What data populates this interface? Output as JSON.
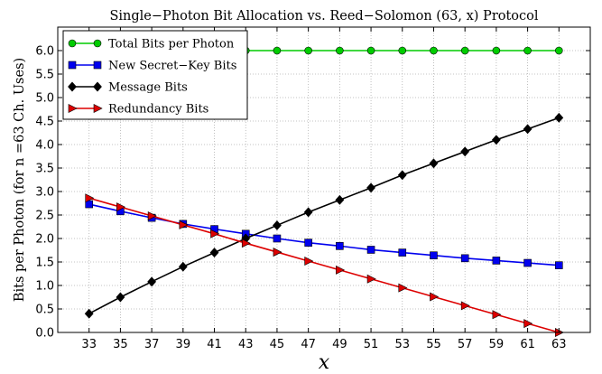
{
  "chart_data": {
    "type": "line",
    "title": "Single−Photon Bit Allocation vs. Reed−Solomon (63, x) Protocol",
    "xlabel": "x",
    "ylabel": "Bits per Photon (for n =63 Ch. Uses)",
    "xlim": [
      31,
      65
    ],
    "ylim": [
      0.0,
      6.5
    ],
    "x_ticks": [
      33,
      35,
      37,
      39,
      41,
      43,
      45,
      47,
      49,
      51,
      53,
      55,
      57,
      59,
      61,
      63
    ],
    "y_ticks": [
      "0.0",
      "0.5",
      "1.0",
      "1.5",
      "2.0",
      "2.5",
      "3.0",
      "3.5",
      "4.0",
      "4.5",
      "5.0",
      "5.5",
      "6.0"
    ],
    "grid": true,
    "legend_position": "top-left",
    "x": [
      33,
      35,
      37,
      39,
      41,
      43,
      45,
      47,
      49,
      51,
      53,
      55,
      57,
      59,
      61,
      63
    ],
    "series": [
      {
        "name": "Total Bits per Photon",
        "color": "#00cc00",
        "marker": "circle",
        "values": [
          6,
          6,
          6,
          6,
          6,
          6,
          6,
          6,
          6,
          6,
          6,
          6,
          6,
          6,
          6,
          6
        ]
      },
      {
        "name": "New Secret−Key Bits",
        "color": "#0000ee",
        "marker": "square",
        "values": [
          2.73,
          2.58,
          2.44,
          2.31,
          2.2,
          2.1,
          2.0,
          1.91,
          1.84,
          1.76,
          1.7,
          1.64,
          1.58,
          1.53,
          1.48,
          1.43
        ]
      },
      {
        "name": "Message Bits",
        "color": "#000000",
        "marker": "diamond",
        "values": [
          0.4,
          0.75,
          1.08,
          1.4,
          1.7,
          2.0,
          2.28,
          2.56,
          2.82,
          3.08,
          3.35,
          3.6,
          3.85,
          4.1,
          4.33,
          4.57
        ]
      },
      {
        "name": "Redundancy Bits",
        "color": "#dd0000",
        "marker": "triangle-right",
        "values": [
          2.86,
          2.67,
          2.48,
          2.29,
          2.1,
          1.9,
          1.71,
          1.52,
          1.33,
          1.14,
          0.95,
          0.76,
          0.57,
          0.38,
          0.19,
          0.0
        ]
      }
    ]
  }
}
